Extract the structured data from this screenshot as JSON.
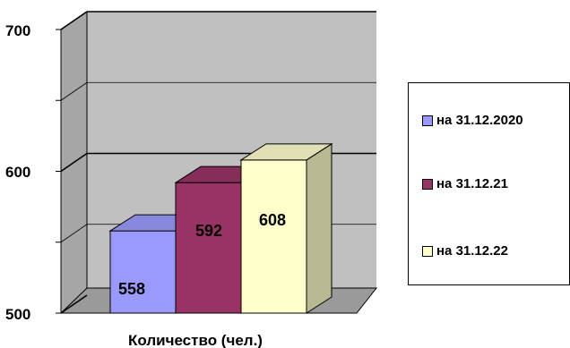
{
  "chart_data": {
    "type": "bar",
    "xlabel": "Количество (чел.)",
    "ylim": [
      500,
      700
    ],
    "yticks": [
      "500",
      "600",
      "700"
    ],
    "series": [
      {
        "name": "на 31.12.2020",
        "value": 558,
        "label": "558",
        "color": "#9a9afc"
      },
      {
        "name": "на 31.12.21",
        "value": 592,
        "label": "592",
        "color": "#993366"
      },
      {
        "name": "на 31.12.22",
        "value": 608,
        "label": "608",
        "color": "#ffffcc"
      }
    ],
    "grid": true,
    "legend_position": "right"
  }
}
